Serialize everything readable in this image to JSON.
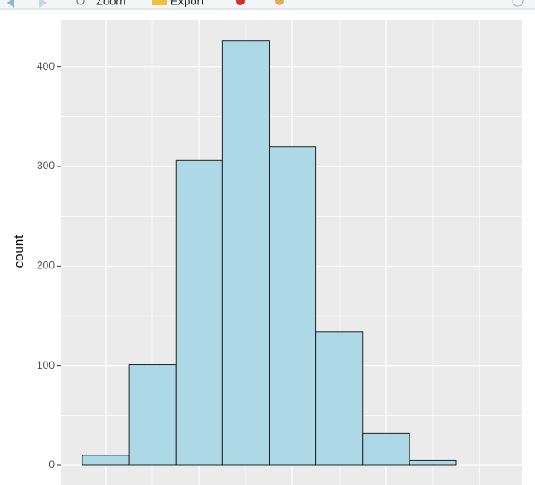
{
  "toolbar": {
    "zoom": "Zoom",
    "export": "Export"
  },
  "chart_data": {
    "type": "bar",
    "y_label": "count",
    "categories": [
      null,
      null,
      null,
      null,
      null,
      null,
      null,
      null
    ],
    "values": [
      10,
      101,
      306,
      426,
      320,
      134,
      32,
      5
    ],
    "color": "#add8e6",
    "edge_color": "#222222",
    "ylim": [
      -21.3,
      447.3
    ],
    "yticks": [
      0,
      100,
      200,
      300,
      400
    ],
    "grid": true
  }
}
